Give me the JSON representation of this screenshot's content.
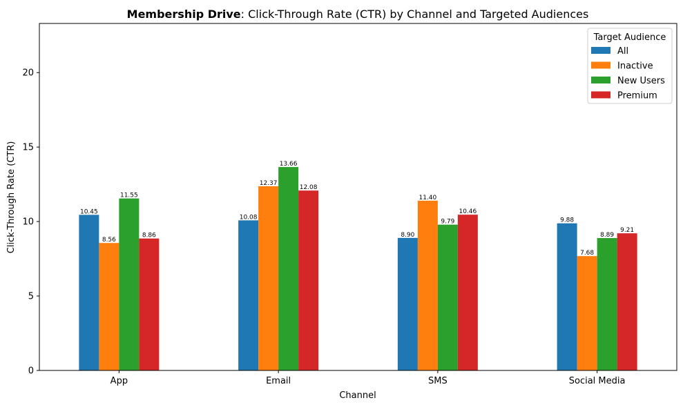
{
  "chart_data": {
    "type": "bar",
    "title_bold": "Membership Drive",
    "title_rest": ": Click-Through Rate (CTR) by Channel and Targeted Audiences",
    "xlabel": "Channel",
    "ylabel": "Click-Through Rate (CTR)",
    "ylim": [
      0,
      23.3
    ],
    "yticks": [
      0,
      5,
      10,
      15,
      20
    ],
    "grid": false,
    "legend_title": "Target Audience",
    "legend_position": "top-right",
    "categories": [
      "App",
      "Email",
      "SMS",
      "Social Media"
    ],
    "series": [
      {
        "name": "All",
        "color": "#1f77b4",
        "values": [
          10.45,
          10.08,
          8.9,
          9.88
        ],
        "labels": [
          "10.45",
          "10.08",
          "8.90",
          "9.88"
        ]
      },
      {
        "name": "Inactive",
        "color": "#ff7f0e",
        "values": [
          8.56,
          12.37,
          11.4,
          7.68
        ],
        "labels": [
          "8.56",
          "12.37",
          "11.40",
          "7.68"
        ]
      },
      {
        "name": "New Users",
        "color": "#2ca02c",
        "values": [
          11.55,
          13.66,
          9.79,
          8.89
        ],
        "labels": [
          "11.55",
          "13.66",
          "9.79",
          "8.89"
        ]
      },
      {
        "name": "Premium",
        "color": "#d62728",
        "values": [
          8.86,
          12.08,
          10.46,
          9.21
        ],
        "labels": [
          "8.86",
          "12.08",
          "10.46",
          "9.21"
        ]
      }
    ]
  }
}
